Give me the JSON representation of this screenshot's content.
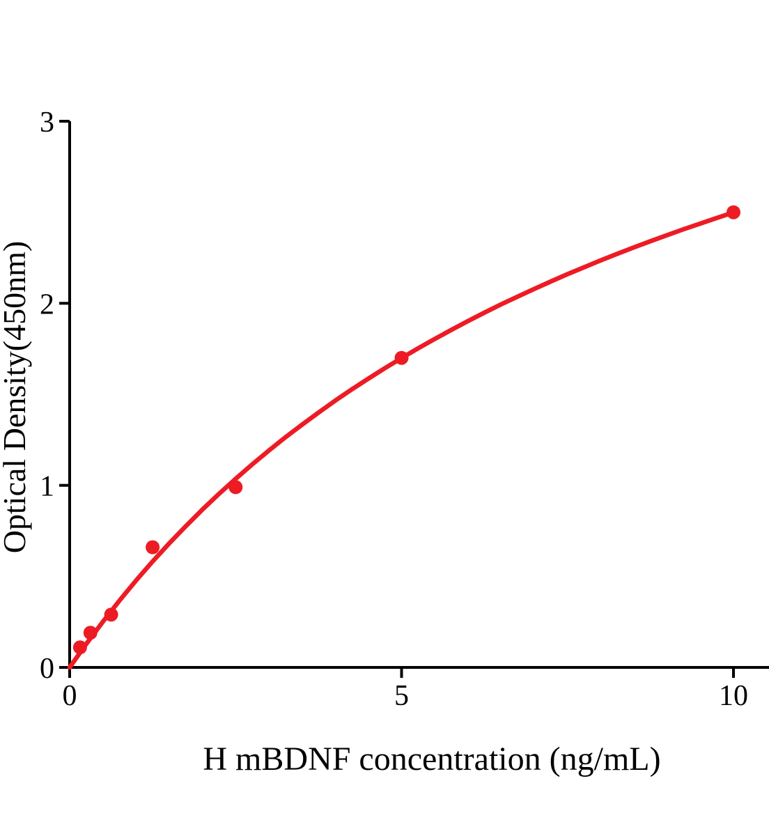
{
  "chart_data": {
    "type": "scatter",
    "title": "",
    "xlabel": "H mBDNF concentration (ng/mL)",
    "ylabel": "Optical Density(450nm)",
    "xlim": [
      0,
      10.55
    ],
    "ylim": [
      0,
      3
    ],
    "xticks": [
      "0",
      "5",
      "10"
    ],
    "xtick_values": [
      0,
      5,
      10
    ],
    "yticks": [
      "0",
      "1",
      "2",
      "3"
    ],
    "ytick_values": [
      0,
      1,
      2,
      3
    ],
    "grid": false,
    "legend_position": "none",
    "colors": {
      "series": "#ED1C24",
      "axis": "#000000",
      "background": "#FFFFFF"
    },
    "series": [
      {
        "name": "standard-data-points",
        "type": "scatter",
        "color": "#ED1C24",
        "points": [
          [
            0.156,
            0.11
          ],
          [
            0.313,
            0.19
          ],
          [
            0.625,
            0.29
          ],
          [
            1.25,
            0.66
          ],
          [
            2.5,
            0.99
          ],
          [
            5,
            1.7
          ],
          [
            10,
            2.5
          ]
        ]
      },
      {
        "name": "fitted-curve",
        "type": "line",
        "color": "#ED1C24",
        "points": [
          [
            0,
            0
          ],
          [
            0.25,
            0.129
          ],
          [
            0.5,
            0.251
          ],
          [
            0.75,
            0.367
          ],
          [
            1,
            0.477
          ],
          [
            1.25,
            0.582
          ],
          [
            1.5,
            0.681
          ],
          [
            1.75,
            0.776
          ],
          [
            2,
            0.867
          ],
          [
            2.25,
            0.953
          ],
          [
            2.5,
            1.036
          ],
          [
            2.75,
            1.115
          ],
          [
            3,
            1.191
          ],
          [
            3.25,
            1.264
          ],
          [
            3.5,
            1.333
          ],
          [
            3.75,
            1.4
          ],
          [
            4,
            1.465
          ],
          [
            4.25,
            1.527
          ],
          [
            4.5,
            1.586
          ],
          [
            4.75,
            1.644
          ],
          [
            5,
            1.699
          ],
          [
            5.25,
            1.753
          ],
          [
            5.5,
            1.804
          ],
          [
            5.75,
            1.854
          ],
          [
            6,
            1.902
          ],
          [
            6.25,
            1.949
          ],
          [
            6.5,
            1.994
          ],
          [
            6.75,
            2.037
          ],
          [
            7,
            2.079
          ],
          [
            7.25,
            2.12
          ],
          [
            7.5,
            2.16
          ],
          [
            7.75,
            2.198
          ],
          [
            8,
            2.236
          ],
          [
            8.25,
            2.272
          ],
          [
            8.5,
            2.307
          ],
          [
            8.75,
            2.341
          ],
          [
            9,
            2.374
          ],
          [
            9.25,
            2.407
          ],
          [
            9.5,
            2.438
          ],
          [
            9.75,
            2.469
          ],
          [
            10,
            2.499
          ]
        ]
      }
    ]
  }
}
